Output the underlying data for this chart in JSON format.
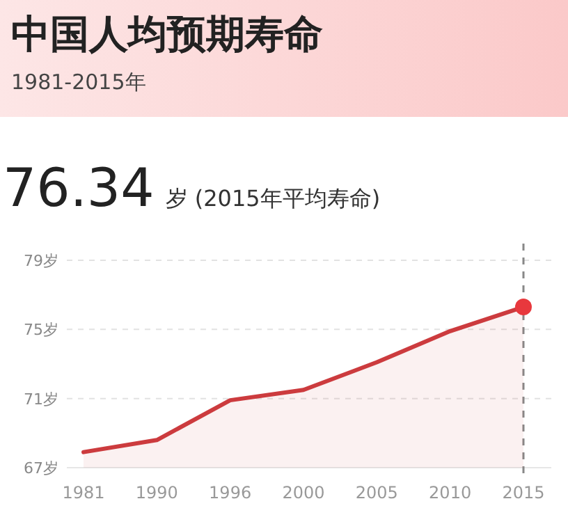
{
  "chart_data": {
    "type": "area",
    "title": "中国人均预期寿命",
    "subtitle": "1981-2015年",
    "annotations": [
      "76.34",
      "岁 (2015年平均寿命)"
    ],
    "categories": [
      "1981",
      "1990",
      "1996",
      "2000",
      "2005",
      "2010",
      "2015"
    ],
    "series": [
      {
        "color": "#cc3b3e",
        "values": [
          67.9,
          68.6,
          70.9,
          71.5,
          73.1,
          74.9,
          76.3
        ]
      },
      {
        "type": "scatter",
        "color": "#e8383d",
        "values": [
          null,
          null,
          null,
          null,
          null,
          null,
          76.3
        ]
      }
    ],
    "ylim": [
      67,
      79
    ],
    "yticks": [
      {
        "value": 67,
        "label": "67岁"
      },
      {
        "value": 71,
        "label": "71岁"
      },
      {
        "value": 75,
        "label": "75岁"
      },
      {
        "value": 79,
        "label": "79岁"
      }
    ],
    "grid": "y",
    "ref_lines": [
      {
        "axis": "x",
        "value": "2015",
        "color": "#888888",
        "line_style": "dashed"
      }
    ]
  }
}
